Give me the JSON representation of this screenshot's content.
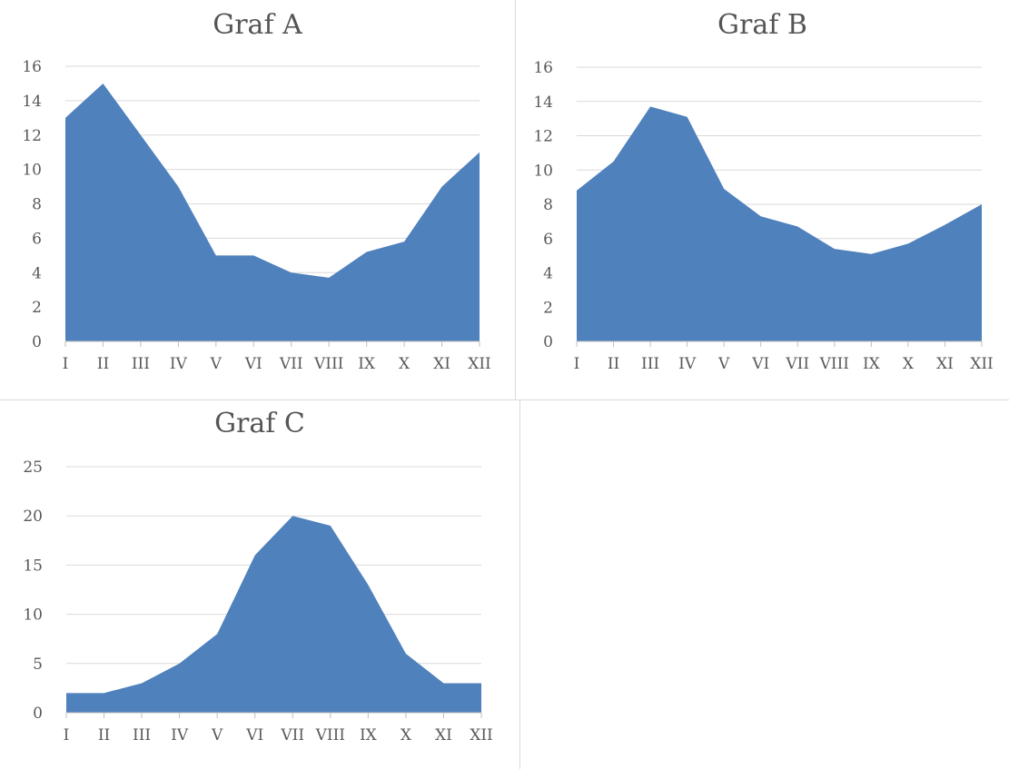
{
  "chart_data": [
    {
      "type": "area",
      "title": "Graf A",
      "categories": [
        "I",
        "II",
        "III",
        "IV",
        "V",
        "VI",
        "VII",
        "VIII",
        "IX",
        "X",
        "XI",
        "XII"
      ],
      "series": [
        {
          "values": [
            13,
            15,
            12,
            9,
            5,
            5,
            4,
            3.7,
            5.2,
            5.8,
            9,
            11
          ]
        }
      ],
      "ylim": [
        0,
        16
      ],
      "yticks": [
        "0",
        "2",
        "4",
        "6",
        "8",
        "10",
        "12",
        "14",
        "16"
      ],
      "grid": true,
      "color": "#4f81bd"
    },
    {
      "type": "area",
      "title": "Graf B",
      "categories": [
        "I",
        "II",
        "III",
        "IV",
        "V",
        "VI",
        "VII",
        "VIII",
        "IX",
        "X",
        "XI",
        "XII"
      ],
      "series": [
        {
          "values": [
            8.8,
            10.5,
            13.7,
            13.1,
            8.9,
            7.3,
            6.7,
            5.4,
            5.1,
            5.7,
            6.8,
            8
          ]
        }
      ],
      "ylim": [
        0,
        16
      ],
      "yticks": [
        "0",
        "2",
        "4",
        "6",
        "8",
        "10",
        "12",
        "14",
        "16"
      ],
      "grid": true,
      "color": "#4f81bd"
    },
    {
      "type": "area",
      "title": "Graf C",
      "categories": [
        "I",
        "II",
        "III",
        "IV",
        "V",
        "VI",
        "VII",
        "VIII",
        "IX",
        "X",
        "XI",
        "XII"
      ],
      "series": [
        {
          "values": [
            2,
            2,
            3,
            5,
            8,
            16,
            20,
            19,
            13,
            6,
            3,
            3
          ]
        }
      ],
      "ylim": [
        0,
        25
      ],
      "yticks": [
        "0",
        "5",
        "10",
        "15",
        "20",
        "25"
      ],
      "grid": true,
      "color": "#4f81bd"
    }
  ]
}
